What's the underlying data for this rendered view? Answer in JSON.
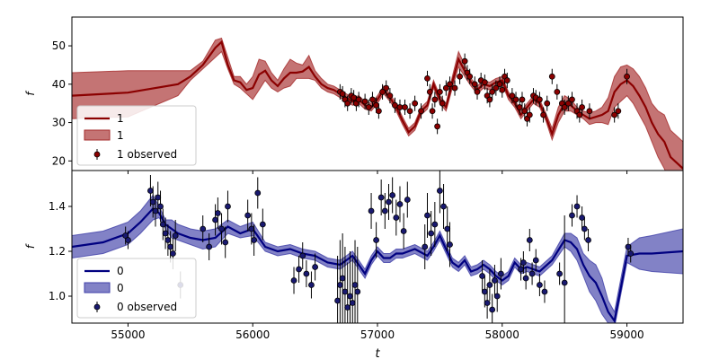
{
  "figure": {
    "xlabel": "t",
    "xticks": [
      "55000",
      "56000",
      "57000",
      "58000",
      "59000"
    ]
  },
  "chart_data": [
    {
      "type": "line",
      "panel": "top",
      "ylabel": "f",
      "xlim": [
        54550,
        59450
      ],
      "ylim": [
        17.5,
        57.5
      ],
      "yticks": [
        20,
        30,
        40,
        50
      ],
      "xticks": [
        55000,
        56000,
        57000,
        58000,
        59000
      ],
      "colors": {
        "line": "#8b0000",
        "band": "#a52a2a",
        "points": "#8b0000"
      },
      "legend": {
        "position": "bottom-left",
        "line": "1",
        "band": "1",
        "points": "1 observed"
      },
      "model": {
        "t": [
          54550,
          55000,
          55400,
          55500,
          55600,
          55700,
          55750,
          55800,
          55850,
          55900,
          55950,
          56000,
          56050,
          56100,
          56150,
          56200,
          56250,
          56300,
          56350,
          56400,
          56450,
          56500,
          56550,
          56600,
          56650,
          56700,
          56750,
          56800,
          56850,
          56900,
          56950,
          57000,
          57050,
          57100,
          57150,
          57200,
          57250,
          57300,
          57350,
          57400,
          57450,
          57500,
          57550,
          57600,
          57650,
          57700,
          57750,
          57800,
          57850,
          57900,
          57950,
          58000,
          58050,
          58100,
          58150,
          58200,
          58250,
          58300,
          58350,
          58400,
          58450,
          58500,
          58550,
          58600,
          58650,
          58700,
          58750,
          58800,
          58850,
          58900,
          58950,
          59000,
          59050,
          59100,
          59150,
          59200,
          59250,
          59300,
          59350,
          59450
        ],
        "mean": [
          37,
          37.8,
          40,
          42,
          45,
          49.5,
          51,
          45,
          41,
          40.5,
          38.5,
          39,
          42.5,
          43.5,
          41,
          39.5,
          41.5,
          43,
          43,
          43.3,
          44.5,
          42,
          40,
          39,
          38.5,
          37.5,
          36.5,
          35.5,
          36,
          34.5,
          34,
          36,
          38.5,
          36.5,
          34,
          30.5,
          27.5,
          29,
          33,
          34.5,
          40,
          36,
          34,
          40.5,
          46.5,
          43.5,
          40.5,
          38.5,
          40,
          39.5,
          40.5,
          41,
          37,
          35,
          32,
          34,
          36,
          35,
          31.5,
          27,
          32,
          35,
          34.5,
          33,
          32,
          31,
          31.5,
          32,
          33,
          38,
          40,
          41,
          39.5,
          37,
          34,
          30,
          27,
          25,
          21,
          18
        ],
        "lower": [
          31,
          31.5,
          37,
          41,
          44,
          47,
          48.5,
          44,
          40,
          39,
          37.5,
          36,
          38.5,
          41,
          39,
          38,
          39,
          39.5,
          41.5,
          41.5,
          41.5,
          41,
          39,
          38,
          37.5,
          36.5,
          35.5,
          34.5,
          35,
          33.5,
          33,
          35,
          37.5,
          35.5,
          33,
          29.5,
          26.5,
          28,
          32,
          33.5,
          39,
          35,
          33,
          39,
          44.5,
          42,
          39.5,
          37.5,
          39,
          38.5,
          39.5,
          40,
          36,
          34,
          31,
          33,
          35,
          34,
          30.5,
          25.5,
          30,
          33,
          33,
          32,
          31,
          29.5,
          30,
          30,
          29.5,
          34,
          35.5,
          37,
          35,
          32,
          29,
          25,
          21,
          18,
          14,
          11
        ],
        "upper": [
          43,
          43.5,
          43.5,
          43.5,
          46,
          51.5,
          52,
          47,
          42,
          42,
          40,
          42,
          46.5,
          46,
          43,
          41,
          44,
          46.5,
          45.5,
          45,
          47.5,
          43.5,
          41.5,
          40,
          39.5,
          38.5,
          37.5,
          36.5,
          37,
          35.5,
          35,
          37,
          39.5,
          37.5,
          35,
          31.5,
          28.5,
          30,
          34,
          35.5,
          41,
          37,
          35,
          42,
          48.5,
          45,
          41.5,
          39.5,
          41,
          40.5,
          41.5,
          42,
          38,
          36,
          33,
          35,
          37,
          36,
          32.5,
          28.5,
          34,
          37,
          36,
          34,
          33,
          32.5,
          33,
          34,
          36.5,
          42,
          44.5,
          45,
          44,
          42,
          39,
          35,
          33,
          32,
          28,
          25
        ]
      },
      "observed": {
        "t": [
          56700,
          56720,
          56740,
          56760,
          56790,
          56810,
          56830,
          56850,
          56900,
          56930,
          56960,
          56990,
          57010,
          57040,
          57070,
          57100,
          57140,
          57180,
          57220,
          57260,
          57300,
          57350,
          57400,
          57420,
          57440,
          57460,
          57480,
          57500,
          57520,
          57550,
          57580,
          57620,
          57660,
          57700,
          57720,
          57740,
          57780,
          57800,
          57830,
          57860,
          57880,
          57900,
          57920,
          57950,
          57980,
          58000,
          58020,
          58040,
          58080,
          58110,
          58140,
          58160,
          58180,
          58200,
          58220,
          58250,
          58270,
          58300,
          58330,
          58360,
          58400,
          58440,
          58480,
          58500,
          58530,
          58560,
          58600,
          58620,
          58640,
          58700,
          58900,
          58930,
          59000
        ],
        "y": [
          38,
          37.5,
          36,
          35,
          37,
          36.5,
          35,
          36,
          35.5,
          34,
          36,
          34.5,
          33,
          38,
          39,
          37,
          34.5,
          34,
          34,
          33,
          35,
          33,
          41.5,
          38,
          33,
          36,
          29,
          38,
          35,
          39,
          40,
          39,
          42,
          46,
          43,
          42,
          40,
          38,
          41,
          40.5,
          37,
          36,
          38,
          39,
          40,
          38.5,
          42,
          41,
          37,
          36,
          34,
          36,
          33,
          31,
          32,
          37,
          36.5,
          36,
          32,
          35,
          42,
          38,
          35,
          34,
          35,
          36,
          33,
          32,
          34,
          33,
          32,
          33,
          42
        ],
        "err": [
          2,
          2,
          2,
          2,
          2,
          2,
          2,
          2,
          2,
          2,
          2,
          2,
          2,
          2,
          2,
          2,
          2,
          2,
          2,
          2,
          2,
          2,
          2,
          2,
          2,
          2,
          2,
          2,
          2,
          2,
          2,
          2,
          2,
          2,
          2,
          2,
          2,
          2,
          2,
          2,
          2,
          2,
          2,
          2,
          2,
          2,
          2,
          2,
          2,
          2,
          2,
          2,
          2,
          2,
          2,
          2,
          2,
          2,
          2,
          2,
          2,
          2,
          2,
          2,
          2,
          2,
          2,
          2,
          2,
          2,
          2,
          2,
          2
        ]
      }
    },
    {
      "type": "line",
      "panel": "bottom",
      "ylabel": "f",
      "xlabel": "t",
      "xlim": [
        54550,
        59450
      ],
      "ylim": [
        0.88,
        1.56
      ],
      "yticks": [
        1.0,
        1.2,
        1.4
      ],
      "xticks": [
        55000,
        56000,
        57000,
        58000,
        59000
      ],
      "colors": {
        "line": "#000080",
        "band": "#3f3fa8",
        "points": "#191970"
      },
      "legend": {
        "position": "bottom-left",
        "line": "0",
        "band": "0",
        "points": "0 observed"
      },
      "model": {
        "t": [
          54550,
          54800,
          55000,
          55100,
          55200,
          55250,
          55300,
          55350,
          55400,
          55500,
          55600,
          55700,
          55800,
          55900,
          56000,
          56100,
          56200,
          56300,
          56400,
          56500,
          56600,
          56700,
          56750,
          56800,
          56850,
          56900,
          56950,
          57000,
          57050,
          57100,
          57150,
          57200,
          57300,
          57400,
          57450,
          57500,
          57550,
          57600,
          57650,
          57700,
          57750,
          57800,
          57850,
          57900,
          57950,
          58000,
          58050,
          58100,
          58150,
          58200,
          58300,
          58400,
          58500,
          58550,
          58600,
          58650,
          58700,
          58750,
          58800,
          58850,
          58900,
          59000,
          59100,
          59200,
          59450
        ],
        "mean": [
          1.22,
          1.24,
          1.28,
          1.33,
          1.39,
          1.37,
          1.32,
          1.3,
          1.28,
          1.26,
          1.25,
          1.26,
          1.31,
          1.28,
          1.3,
          1.22,
          1.2,
          1.21,
          1.19,
          1.18,
          1.15,
          1.14,
          1.16,
          1.18,
          1.14,
          1.1,
          1.16,
          1.2,
          1.17,
          1.17,
          1.19,
          1.19,
          1.21,
          1.18,
          1.22,
          1.27,
          1.21,
          1.15,
          1.13,
          1.16,
          1.11,
          1.12,
          1.14,
          1.12,
          1.09,
          1.07,
          1.09,
          1.15,
          1.12,
          1.13,
          1.11,
          1.16,
          1.25,
          1.24,
          1.21,
          1.14,
          1.09,
          1.06,
          1.0,
          0.93,
          0.89,
          1.18,
          1.19,
          1.19,
          1.2
        ],
        "lower": [
          1.17,
          1.19,
          1.23,
          1.28,
          1.34,
          1.35,
          1.3,
          1.26,
          1.25,
          1.23,
          1.21,
          1.22,
          1.28,
          1.26,
          1.27,
          1.2,
          1.18,
          1.19,
          1.17,
          1.16,
          1.13,
          1.12,
          1.14,
          1.16,
          1.12,
          1.08,
          1.14,
          1.18,
          1.15,
          1.15,
          1.17,
          1.17,
          1.19,
          1.16,
          1.2,
          1.25,
          1.19,
          1.13,
          1.11,
          1.14,
          1.09,
          1.1,
          1.12,
          1.1,
          1.07,
          1.05,
          1.07,
          1.13,
          1.1,
          1.11,
          1.09,
          1.14,
          1.22,
          1.2,
          1.16,
          1.09,
          1.02,
          0.98,
          0.92,
          0.88,
          0.86,
          1.15,
          1.12,
          1.11,
          1.1
        ],
        "upper": [
          1.27,
          1.29,
          1.33,
          1.38,
          1.45,
          1.4,
          1.34,
          1.34,
          1.32,
          1.3,
          1.29,
          1.3,
          1.34,
          1.31,
          1.33,
          1.24,
          1.22,
          1.23,
          1.21,
          1.2,
          1.17,
          1.16,
          1.18,
          1.2,
          1.16,
          1.12,
          1.18,
          1.22,
          1.19,
          1.19,
          1.21,
          1.21,
          1.23,
          1.2,
          1.24,
          1.29,
          1.23,
          1.17,
          1.15,
          1.18,
          1.13,
          1.14,
          1.16,
          1.14,
          1.11,
          1.09,
          1.11,
          1.17,
          1.14,
          1.15,
          1.13,
          1.18,
          1.28,
          1.28,
          1.26,
          1.19,
          1.16,
          1.14,
          1.08,
          0.98,
          0.93,
          1.22,
          1.26,
          1.27,
          1.3
        ]
      },
      "observed": {
        "t": [
          54980,
          55000,
          55180,
          55200,
          55220,
          55240,
          55260,
          55280,
          55300,
          55320,
          55340,
          55360,
          55380,
          55420,
          55600,
          55650,
          55700,
          55720,
          55750,
          55780,
          55800,
          55960,
          55990,
          56010,
          56040,
          56080,
          56330,
          56370,
          56400,
          56430,
          56470,
          56500,
          56680,
          56700,
          56720,
          56740,
          56760,
          56780,
          56800,
          56820,
          56840,
          56950,
          56990,
          57030,
          57060,
          57090,
          57120,
          57150,
          57180,
          57210,
          57240,
          57380,
          57400,
          57430,
          57460,
          57500,
          57530,
          57560,
          57580,
          57840,
          57860,
          57880,
          57900,
          57920,
          57940,
          57960,
          57990,
          58150,
          58170,
          58190,
          58220,
          58240,
          58270,
          58300,
          58340,
          58460,
          58500,
          58560,
          58600,
          58640,
          58660,
          58690,
          59010,
          59030
        ],
        "y": [
          1.27,
          1.25,
          1.47,
          1.42,
          1.38,
          1.44,
          1.4,
          1.32,
          1.28,
          1.25,
          1.22,
          1.19,
          1.27,
          1.05,
          1.3,
          1.22,
          1.34,
          1.37,
          1.3,
          1.24,
          1.4,
          1.36,
          1.3,
          1.25,
          1.46,
          1.32,
          1.07,
          1.12,
          1.18,
          1.1,
          1.05,
          1.13,
          0.98,
          1.05,
          1.08,
          1.02,
          0.95,
          1.0,
          0.97,
          1.05,
          1.02,
          1.38,
          1.25,
          1.44,
          1.38,
          1.42,
          1.45,
          1.35,
          1.41,
          1.29,
          1.43,
          1.22,
          1.36,
          1.28,
          1.32,
          1.47,
          1.4,
          1.3,
          1.23,
          1.09,
          1.02,
          0.97,
          1.05,
          0.94,
          1.07,
          1.0,
          1.1,
          1.12,
          1.15,
          1.08,
          1.25,
          1.1,
          1.16,
          1.05,
          1.02,
          1.1,
          1.06,
          1.36,
          1.4,
          1.35,
          1.3,
          1.25,
          1.22,
          1.19
        ],
        "err": [
          0.04,
          0.04,
          0.07,
          0.07,
          0.07,
          0.07,
          0.07,
          0.07,
          0.07,
          0.07,
          0.07,
          0.07,
          0.07,
          0.06,
          0.06,
          0.06,
          0.07,
          0.07,
          0.07,
          0.07,
          0.07,
          0.07,
          0.07,
          0.07,
          0.07,
          0.07,
          0.06,
          0.06,
          0.06,
          0.06,
          0.06,
          0.06,
          0.2,
          0.2,
          0.2,
          0.2,
          0.2,
          0.2,
          0.2,
          0.2,
          0.2,
          0.08,
          0.08,
          0.08,
          0.08,
          0.08,
          0.08,
          0.08,
          0.08,
          0.08,
          0.08,
          0.1,
          0.1,
          0.1,
          0.1,
          0.1,
          0.1,
          0.1,
          0.1,
          0.07,
          0.07,
          0.07,
          0.07,
          0.07,
          0.07,
          0.07,
          0.07,
          0.05,
          0.05,
          0.05,
          0.05,
          0.05,
          0.05,
          0.05,
          0.05,
          0.05,
          0.3,
          0.05,
          0.05,
          0.05,
          0.05,
          0.05,
          0.04,
          0.04
        ]
      }
    }
  ]
}
